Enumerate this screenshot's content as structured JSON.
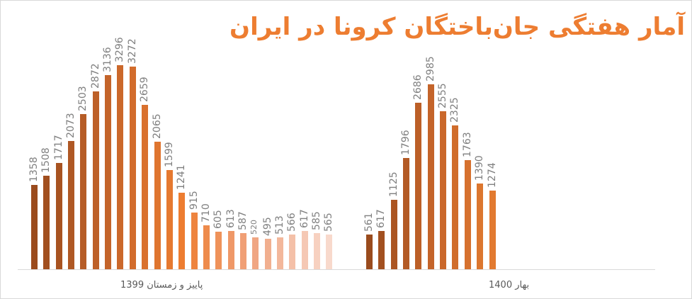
{
  "title": "آمار هفتگی جان‌باختگان کرونا در ایران",
  "chart_data": {
    "type": "bar",
    "title": "آمار هفتگی جان‌باختگان کرونا در ایران",
    "xlabel": "",
    "ylabel": "",
    "grid": false,
    "legend": "none",
    "groups": [
      {
        "name": "پاییز و زمستان 1399",
        "values": [
          1358,
          1508,
          1717,
          2073,
          2503,
          2872,
          3136,
          3296,
          3272,
          2659,
          2065,
          1599,
          1241,
          915,
          710,
          605,
          613,
          587,
          520,
          495,
          513,
          566,
          617,
          585,
          565
        ]
      },
      {
        "name": "بهار 1400",
        "values": [
          561,
          617,
          1125,
          1796,
          2686,
          2985,
          2555,
          2325,
          1763,
          1390,
          1274
        ]
      }
    ],
    "ylim": [
      0,
      3300
    ]
  },
  "categories": {
    "group1_label": "پاییز و زمستان 1399",
    "group2_label": "بهار 1400"
  }
}
